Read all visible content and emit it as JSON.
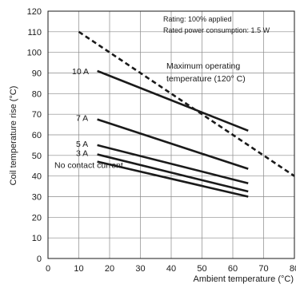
{
  "chart_data": {
    "type": "line",
    "xlabel": "Ambient temperature (°C)",
    "ylabel": "Coil temperature rise (°C)",
    "xlim": [
      0,
      80
    ],
    "ylim": [
      0,
      120
    ],
    "x_ticks": [
      0,
      10,
      20,
      30,
      40,
      50,
      60,
      70,
      80
    ],
    "y_ticks": [
      0,
      10,
      20,
      30,
      40,
      50,
      60,
      70,
      80,
      90,
      100,
      110,
      120
    ],
    "grid": true,
    "notes": [
      "Rating: 100% applied",
      "Rated power consumption: 1.5 W"
    ],
    "series": [
      {
        "name": "10 A",
        "x": [
          16,
          65
        ],
        "y": [
          91,
          62
        ],
        "style": "solid"
      },
      {
        "name": "7 A",
        "x": [
          16,
          65
        ],
        "y": [
          67.5,
          43.5
        ],
        "style": "solid"
      },
      {
        "name": "5 A",
        "x": [
          16,
          65
        ],
        "y": [
          55,
          36.5
        ],
        "style": "solid"
      },
      {
        "name": "3 A",
        "x": [
          16,
          65
        ],
        "y": [
          50.5,
          32.5
        ],
        "style": "solid"
      },
      {
        "name": "No contact current",
        "x": [
          16,
          65
        ],
        "y": [
          47,
          30
        ],
        "style": "solid"
      }
    ],
    "limit_line": {
      "label_line1": "Maximum operating",
      "label_line2": "temperature (120° C)",
      "x": [
        10,
        80
      ],
      "y": [
        110,
        40
      ],
      "style": "dashed"
    }
  }
}
